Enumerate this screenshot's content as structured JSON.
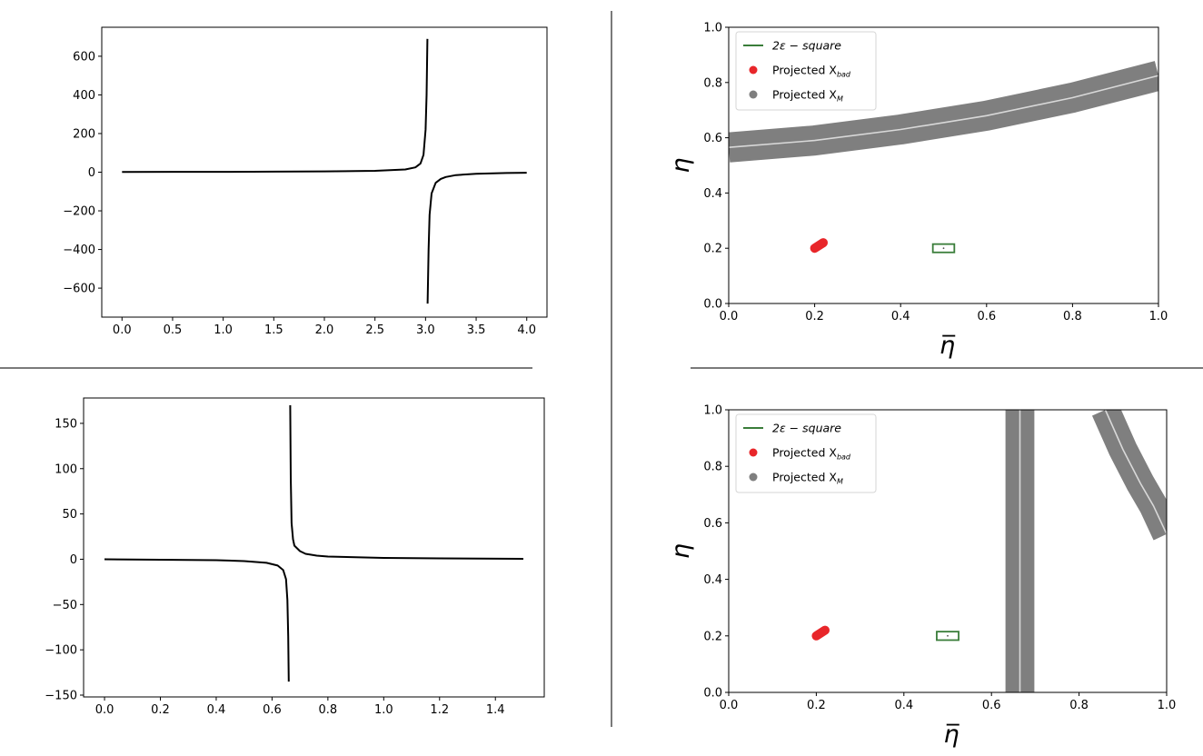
{
  "chart_data": [
    {
      "id": "top-left",
      "type": "line",
      "title": "",
      "xlabel": "",
      "ylabel": "",
      "xlim": [
        -0.2,
        4.2
      ],
      "ylim": [
        -750,
        750
      ],
      "xticks": [
        0.0,
        0.5,
        1.0,
        1.5,
        2.0,
        2.5,
        3.0,
        3.5,
        4.0
      ],
      "xtick_labels": [
        "0.0",
        "0.5",
        "1.0",
        "1.5",
        "2.0",
        "2.5",
        "3.0",
        "3.5",
        "4.0"
      ],
      "yticks": [
        -600,
        -400,
        -200,
        0,
        200,
        400,
        600
      ],
      "ytick_labels": [
        "−600",
        "−400",
        "−200",
        "0",
        "200",
        "400",
        "600"
      ],
      "series": [
        {
          "color": "#000000",
          "x": [
            0,
            0.5,
            1.0,
            1.5,
            2.0,
            2.5,
            2.8,
            2.9,
            2.95,
            2.98,
            3.0,
            3.01,
            3.018
          ],
          "y": [
            1,
            2,
            2,
            3,
            4,
            7,
            14,
            25,
            45,
            90,
            220,
            400,
            690
          ]
        },
        {
          "color": "#000000",
          "x": [
            3.02,
            3.03,
            3.04,
            3.06,
            3.1,
            3.15,
            3.2,
            3.3,
            3.5,
            3.8,
            4.0
          ],
          "y": [
            -680,
            -400,
            -220,
            -110,
            -55,
            -35,
            -25,
            -15,
            -8,
            -4,
            -3
          ]
        }
      ]
    },
    {
      "id": "bottom-left",
      "type": "line",
      "title": "",
      "xlabel": "",
      "ylabel": "",
      "xlim": [
        -0.075,
        1.575
      ],
      "ylim": [
        -152,
        178
      ],
      "xticks": [
        0.0,
        0.2,
        0.4,
        0.6,
        0.8,
        1.0,
        1.2,
        1.4
      ],
      "xtick_labels": [
        "0.0",
        "0.2",
        "0.4",
        "0.6",
        "0.8",
        "1.0",
        "1.2",
        "1.4"
      ],
      "yticks": [
        -150,
        -100,
        -50,
        0,
        50,
        100,
        150
      ],
      "ytick_labels": [
        "−150",
        "−100",
        "−50",
        "0",
        "50",
        "100",
        "150"
      ],
      "series": [
        {
          "color": "#000000",
          "x": [
            0,
            0.2,
            0.4,
            0.5,
            0.58,
            0.62,
            0.64,
            0.65,
            0.655,
            0.658,
            0.66
          ],
          "y": [
            0,
            -0.5,
            -1,
            -2,
            -4,
            -7,
            -12,
            -22,
            -45,
            -85,
            -135
          ]
        },
        {
          "color": "#000000",
          "x": [
            0.665,
            0.667,
            0.67,
            0.675,
            0.68,
            0.7,
            0.72,
            0.76,
            0.8,
            1.0,
            1.2,
            1.5
          ],
          "y": [
            170,
            90,
            40,
            22,
            15,
            9,
            6,
            4,
            3,
            1.5,
            1,
            0.5
          ]
        }
      ]
    },
    {
      "id": "top-right",
      "type": "scatter",
      "title": "",
      "xlabel": "η̅",
      "ylabel": "η",
      "xlim": [
        0,
        1
      ],
      "ylim": [
        0,
        1
      ],
      "xticks": [
        0.0,
        0.2,
        0.4,
        0.6,
        0.8,
        1.0
      ],
      "xtick_labels": [
        "0.0",
        "0.2",
        "0.4",
        "0.6",
        "0.8",
        "1.0"
      ],
      "yticks": [
        0.0,
        0.2,
        0.4,
        0.6,
        0.8,
        1.0
      ],
      "ytick_labels": [
        "0.0",
        "0.2",
        "0.4",
        "0.6",
        "0.8",
        "1.0"
      ],
      "legend": {
        "position": "top-left",
        "entries": [
          {
            "label": "2ε − square",
            "marker": "line",
            "color": "#3a7d3a"
          },
          {
            "label": "Projected X_bad",
            "marker": "dot",
            "color": "#e8262a"
          },
          {
            "label": "Projected X_M",
            "marker": "dot",
            "color": "#7f7f7f"
          }
        ]
      },
      "band": {
        "color": "#7f7f7f",
        "halfwidth": 0.035,
        "curves": [
          [
            [
              0,
              0.565
            ],
            [
              0.2,
              0.59
            ],
            [
              0.4,
              0.63
            ],
            [
              0.6,
              0.68
            ],
            [
              0.8,
              0.745
            ],
            [
              1.0,
              0.825
            ]
          ]
        ]
      },
      "square": {
        "center": [
          0.5,
          0.2
        ],
        "halfsize": 0.025,
        "color": "#3a7d3a"
      },
      "bad_points": {
        "color": "#e8262a",
        "from": [
          0.2,
          0.2
        ],
        "to": [
          0.22,
          0.22
        ]
      }
    },
    {
      "id": "bottom-right",
      "type": "scatter",
      "title": "",
      "xlabel": "η̅",
      "ylabel": "η",
      "xlim": [
        0,
        1
      ],
      "ylim": [
        0,
        1
      ],
      "xticks": [
        0.0,
        0.2,
        0.4,
        0.6,
        0.8,
        1.0
      ],
      "xtick_labels": [
        "0.0",
        "0.2",
        "0.4",
        "0.6",
        "0.8",
        "1.0"
      ],
      "yticks": [
        0.0,
        0.2,
        0.4,
        0.6,
        0.8,
        1.0
      ],
      "ytick_labels": [
        "0.0",
        "0.2",
        "0.4",
        "0.6",
        "0.8",
        "1.0"
      ],
      "legend": {
        "position": "top-left",
        "entries": [
          {
            "label": "2ε − square",
            "marker": "line",
            "color": "#3a7d3a"
          },
          {
            "label": "Projected X_bad",
            "marker": "dot",
            "color": "#e8262a"
          },
          {
            "label": "Projected X_M",
            "marker": "dot",
            "color": "#7f7f7f"
          }
        ]
      },
      "band": {
        "color": "#7f7f7f",
        "halfwidth": 0.033,
        "curves": [
          [
            [
              0.665,
              0
            ],
            [
              0.665,
              1.0
            ]
          ],
          [
            [
              0.86,
              1.0
            ],
            [
              0.9,
              0.86
            ],
            [
              0.94,
              0.74
            ],
            [
              0.97,
              0.66
            ],
            [
              1.0,
              0.56
            ]
          ]
        ]
      },
      "square": {
        "center": [
          0.5,
          0.2
        ],
        "halfsize": 0.025,
        "color": "#3a7d3a"
      },
      "bad_points": {
        "color": "#e8262a",
        "from": [
          0.2,
          0.2
        ],
        "to": [
          0.22,
          0.22
        ]
      }
    }
  ]
}
